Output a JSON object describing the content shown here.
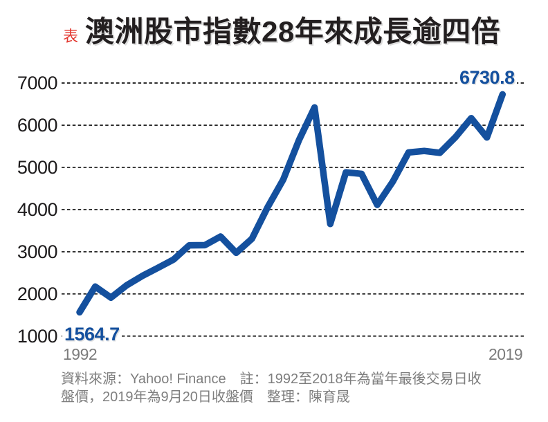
{
  "header": {
    "tag": "表",
    "title": "澳洲股市指數28年來成長逾四倍"
  },
  "chart_data": {
    "type": "line",
    "title": "澳洲股市指數28年來成長逾四倍",
    "series_name": "澳洲股市指數",
    "x": [
      1992,
      1993,
      1994,
      1995,
      1996,
      1997,
      1998,
      1999,
      2000,
      2001,
      2002,
      2003,
      2004,
      2005,
      2006,
      2007,
      2008,
      2009,
      2010,
      2011,
      2012,
      2013,
      2014,
      2015,
      2016,
      2017,
      2018,
      2019
    ],
    "values": [
      1564.7,
      2173.0,
      1912.7,
      2203.0,
      2424.6,
      2616.5,
      2813.4,
      3152.5,
      3154.7,
      3359.9,
      2975.5,
      3306.0,
      4053.1,
      4708.8,
      5644.3,
      6421.0,
      3659.3,
      4882.7,
      4846.9,
      4111.0,
      4664.6,
      5353.1,
      5388.6,
      5344.6,
      5719.1,
      6167.3,
      5709.4,
      6730.8
    ],
    "yticks": [
      7000,
      6000,
      5000,
      4000,
      3000,
      2000,
      1000
    ],
    "ylim": [
      1000,
      7000
    ],
    "grid": "horizontal-dashed",
    "legend": "none",
    "x_start_label": "1992",
    "x_end_label": "2019",
    "start_annotation": "1564.7",
    "end_annotation": "6730.8",
    "line_color": "#14509e",
    "annotation_color": "#14509e",
    "tag_color": "#e33a32"
  },
  "footer": {
    "line1": "資料來源：Yahoo! Finance　註：1992至2018年為當年最後交易日收",
    "line2": "盤價，2019年為9月20日收盤價　整理：陳育晟"
  }
}
